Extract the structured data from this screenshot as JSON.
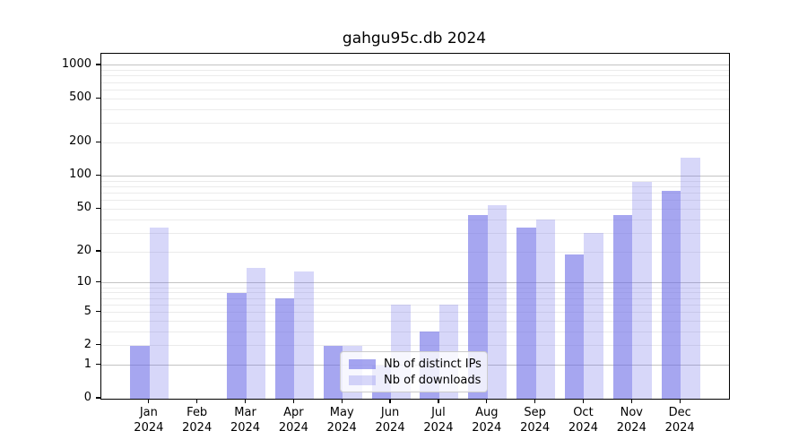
{
  "title": "gahgu95c.db 2024",
  "legend": {
    "items": [
      {
        "label": "Nb of distinct IPs",
        "series": "ips"
      },
      {
        "label": "Nb of downloads",
        "series": "downloads"
      }
    ],
    "position": "lower center"
  },
  "colors": {
    "bar_base": "#6666E6",
    "bar_ips_fill": "rgba(102,102,230,0.58)",
    "bar_downloads_fill": "rgba(102,102,230,0.26)",
    "grid_minor": "#ebebeb",
    "grid_major": "#c3c3c3",
    "axis": "#000000"
  },
  "chart_data": {
    "type": "bar",
    "title": "gahgu95c.db 2024",
    "categories": [
      "Jan 2024",
      "Feb 2024",
      "Mar 2024",
      "Apr 2024",
      "May 2024",
      "Jun 2024",
      "Jul 2024",
      "Aug 2024",
      "Sep 2024",
      "Oct 2024",
      "Nov 2024",
      "Dec 2024"
    ],
    "x_tick_months": [
      "Jan",
      "Feb",
      "Mar",
      "Apr",
      "May",
      "Jun",
      "Jul",
      "Aug",
      "Sep",
      "Oct",
      "Nov",
      "Dec"
    ],
    "x_tick_year": "2024",
    "series": [
      {
        "name": "Nb of distinct IPs",
        "values": [
          2,
          0,
          8,
          7,
          2,
          1,
          3,
          44,
          34,
          19,
          44,
          73
        ]
      },
      {
        "name": "Nb of downloads",
        "values": [
          34,
          0,
          14,
          13,
          2,
          6,
          6,
          54,
          40,
          30,
          88,
          148
        ]
      }
    ],
    "xlabel": "",
    "ylabel": "",
    "yscale": "log10(value+1)",
    "y_ticks": [
      0,
      1,
      2,
      5,
      10,
      20,
      50,
      100,
      200,
      500,
      1000
    ],
    "ylim": [
      0,
      1270
    ],
    "grid": {
      "on": true,
      "minor_lines": [
        2,
        3,
        4,
        5,
        6,
        7,
        8,
        9,
        20,
        30,
        40,
        50,
        60,
        70,
        80,
        90,
        200,
        300,
        400,
        500,
        600,
        700,
        800,
        900
      ],
      "major_lines": [
        1,
        10,
        100,
        1000
      ]
    },
    "legend_position": "lower center"
  }
}
